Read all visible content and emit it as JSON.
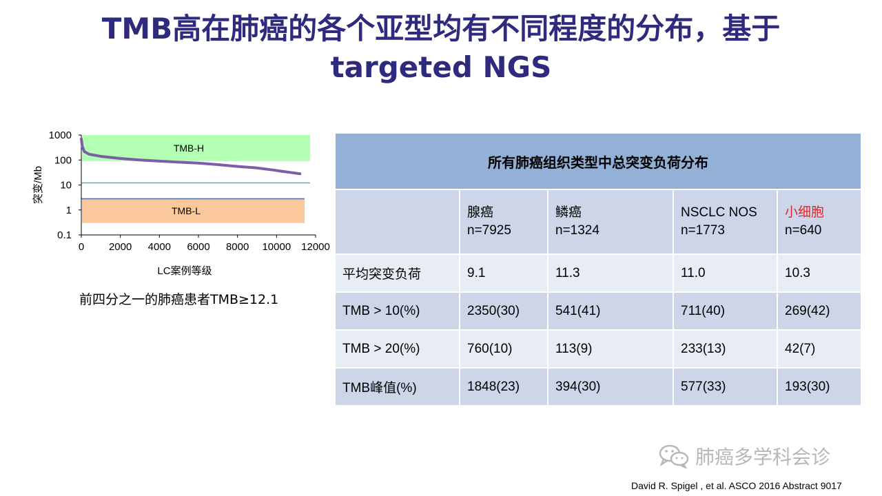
{
  "title": {
    "line1": "TMB高在肺癌的各个亚型均有不同程度的分布，基于",
    "line2": "targeted NGS"
  },
  "chart_data": {
    "type": "line",
    "ylabel": "突变/Mb",
    "xlabel": "LC案例等级",
    "yscale": "log",
    "ylim": [
      0.1,
      1000
    ],
    "yticks": [
      "1000",
      "100",
      "10",
      "1",
      "0.1"
    ],
    "xlim": [
      0,
      12000
    ],
    "xticks": [
      "0",
      "2000",
      "4000",
      "6000",
      "8000",
      "10000",
      "12000"
    ],
    "regions": [
      {
        "label": "TMB-H",
        "y_from": 90,
        "y_to": 1000,
        "color": "#b3ffb3"
      },
      {
        "label": "TMB-L",
        "y_from": 0.3,
        "y_to": 2.8,
        "color": "#fbc99b"
      }
    ],
    "reference_lines": [
      {
        "y": 12.1,
        "color": "#4bacc6"
      },
      {
        "y": 2.8,
        "color": "#4f6ea8"
      }
    ],
    "series": [
      {
        "x": [
          0,
          50,
          150,
          400,
          1000,
          2000,
          3000,
          4000,
          5000,
          6000,
          7000,
          8000,
          9000,
          9800,
          10300,
          10800,
          11200
        ],
        "y": [
          700,
          350,
          220,
          170,
          140,
          115,
          100,
          90,
          82,
          75,
          65,
          55,
          48,
          40,
          35,
          31,
          28
        ],
        "color": "#7b5ea7"
      }
    ]
  },
  "chart_caption": "前四分之一的肺癌患者TMB≥12.1",
  "table": {
    "header": "所有肺癌组织类型中总突变负荷分布",
    "groups": [
      {
        "name": "腺癌",
        "n": "n=7925"
      },
      {
        "name": "鳞癌",
        "n": "n=1324"
      },
      {
        "name": "NSCLC NOS",
        "n": "n=1773"
      },
      {
        "name": "小细胞",
        "n": "n=640"
      }
    ],
    "rows": [
      {
        "label": "平均突变负荷",
        "values": [
          "9.1",
          "11.3",
          "11.0",
          "10.3"
        ]
      },
      {
        "label": "TMB > 10(%)",
        "values": [
          "2350(30)",
          "541(41)",
          "711(40)",
          "269(42)"
        ]
      },
      {
        "label": "TMB > 20(%)",
        "values": [
          "760(10)",
          "113(9)",
          "233(13)",
          "42(7)"
        ]
      },
      {
        "label": "TMB峰值(%)",
        "values": [
          "1848(23)",
          "394(30)",
          "577(33)",
          "193(30)"
        ]
      }
    ]
  },
  "watermark": "肺癌多学科会诊",
  "watermark_icon": "wechat-icon",
  "citation": "David R. Spigel , et al. ASCO 2016  Abstract 9017"
}
